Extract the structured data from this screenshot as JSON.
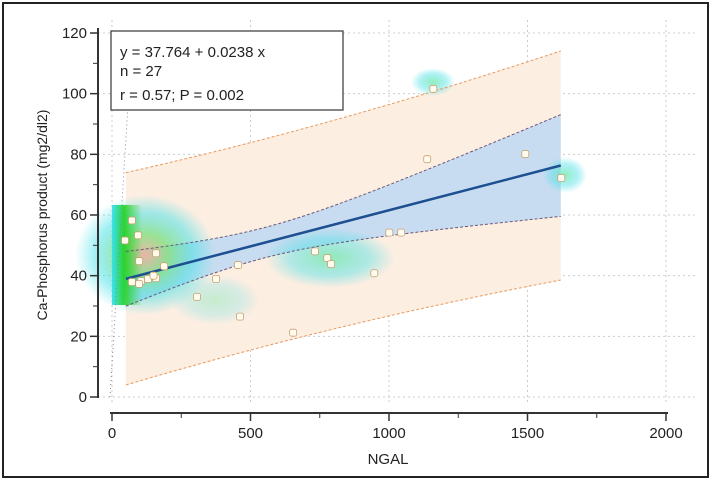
{
  "chart_data": {
    "type": "scatter",
    "xlabel": "NGAL",
    "ylabel": "Ca-Phosphorus product (mg2/dl2)",
    "xlim": [
      0,
      2000
    ],
    "ylim": [
      0,
      120
    ],
    "xticks": [
      0,
      500,
      1000,
      1500,
      2000
    ],
    "xtick_labels": [
      "0",
      "500",
      "1000",
      "1500",
      "2000"
    ],
    "yticks": [
      0,
      20,
      40,
      60,
      80,
      100,
      120
    ],
    "ytick_labels": [
      "0",
      "20",
      "40",
      "60",
      "80",
      "100",
      "120"
    ],
    "grid": true,
    "annotation": {
      "equation": "y = 37.764 + 0.0238 x",
      "n": "n = 27",
      "stats": "r = 0.57; P = 0.002"
    },
    "regression": {
      "intercept": 37.764,
      "slope": 0.0238,
      "x_range": [
        50,
        1620
      ]
    },
    "points": [
      [
        72,
        58.2
      ],
      [
        94,
        53.3
      ],
      [
        47,
        51.6
      ],
      [
        159,
        47.4
      ],
      [
        98,
        44.8
      ],
      [
        188,
        43.1
      ],
      [
        455,
        43.5
      ],
      [
        376,
        38.9
      ],
      [
        72,
        37.9
      ],
      [
        105,
        38.2
      ],
      [
        98,
        37.3
      ],
      [
        130,
        38.9
      ],
      [
        159,
        39.2
      ],
      [
        150,
        40.0
      ],
      [
        307,
        33.0
      ],
      [
        462,
        26.5
      ],
      [
        1160,
        101.6
      ],
      [
        1138,
        78.4
      ],
      [
        1492,
        80.1
      ],
      [
        1622,
        72.2
      ],
      [
        1001,
        54.2
      ],
      [
        1044,
        54.2
      ],
      [
        733,
        48.0
      ],
      [
        777,
        45.8
      ],
      [
        791,
        43.8
      ],
      [
        947,
        40.8
      ],
      [
        654,
        21.2
      ]
    ],
    "colors": {
      "line": "#1d4f91",
      "ci_fill": "#c7dcf0",
      "pi_fill": "#fdeee2",
      "pi_line": "#e89a5c",
      "point_fill": "#fffbee",
      "point_stroke": "#c8a070"
    }
  }
}
